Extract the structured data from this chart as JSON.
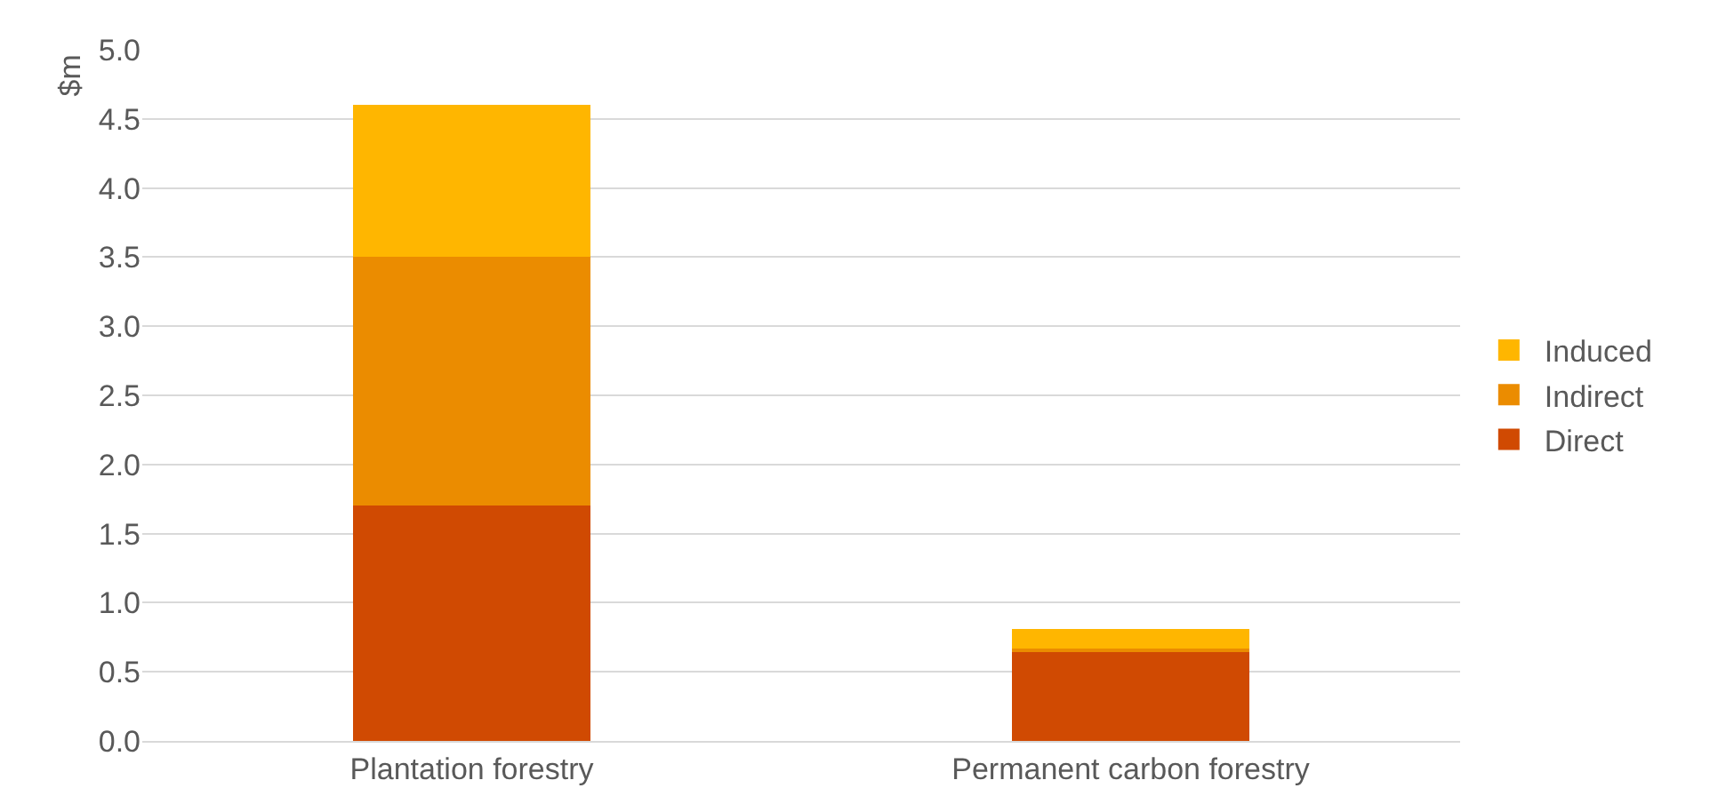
{
  "chart_data": {
    "type": "bar",
    "stacked": true,
    "ylabel": "$m",
    "categories": [
      "Plantation forestry",
      "Permanent carbon forestry"
    ],
    "series": [
      {
        "name": "Direct",
        "color": "#d04a02",
        "values": [
          1.7,
          0.65
        ]
      },
      {
        "name": "Indirect",
        "color": "#eb8c00",
        "values": [
          1.8,
          0.02
        ]
      },
      {
        "name": "Induced",
        "color": "#ffb600",
        "values": [
          1.1,
          0.14
        ]
      }
    ],
    "ylim": [
      0,
      5
    ],
    "yticks": [
      {
        "value": 0,
        "label": "0.0"
      },
      {
        "value": 0.5,
        "label": "0.5"
      },
      {
        "value": 1,
        "label": "1.0"
      },
      {
        "value": 1.5,
        "label": "1.5"
      },
      {
        "value": 2,
        "label": "2.0"
      },
      {
        "value": 2.5,
        "label": "2.5"
      },
      {
        "value": 3,
        "label": "3.0"
      },
      {
        "value": 3.5,
        "label": "3.5"
      },
      {
        "value": 4,
        "label": "4.0"
      },
      {
        "value": 4.5,
        "label": "4.5"
      },
      {
        "value": 5,
        "label": "5.0"
      }
    ],
    "grid": "y",
    "legend": "right"
  }
}
